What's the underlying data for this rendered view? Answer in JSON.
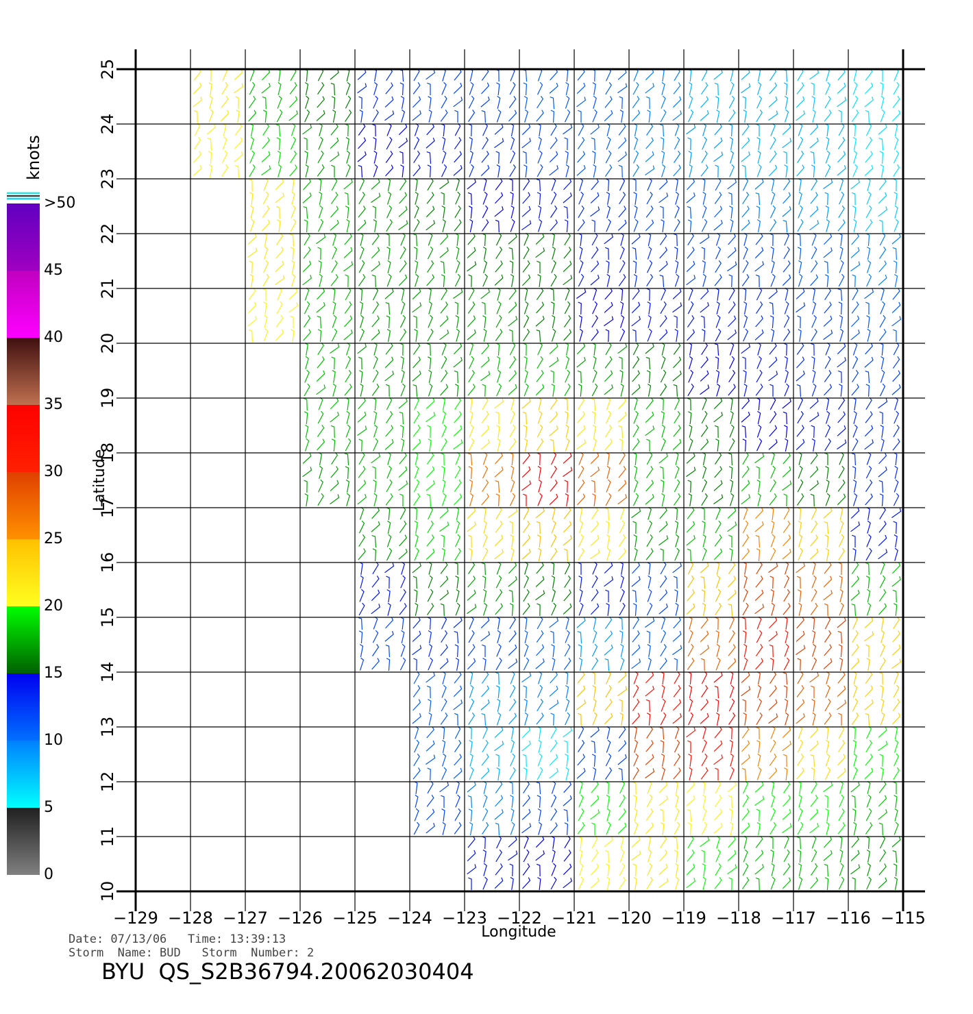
{
  "chart_data": {
    "type": "wind-barbs",
    "xlabel": "Longitude",
    "ylabel": "Latitude",
    "xlim": [
      -129,
      -115
    ],
    "ylim": [
      10,
      25
    ],
    "xticks": [
      {
        "value": -129,
        "label": "−129"
      },
      {
        "value": -128,
        "label": "−128"
      },
      {
        "value": -127,
        "label": "−127"
      },
      {
        "value": -126,
        "label": "−126"
      },
      {
        "value": -125,
        "label": "−125"
      },
      {
        "value": -124,
        "label": "−124"
      },
      {
        "value": -123,
        "label": "−123"
      },
      {
        "value": -122,
        "label": "−122"
      },
      {
        "value": -121,
        "label": "−121"
      },
      {
        "value": -120,
        "label": "−120"
      },
      {
        "value": -119,
        "label": "−119"
      },
      {
        "value": -118,
        "label": "−118"
      },
      {
        "value": -117,
        "label": "−117"
      },
      {
        "value": -116,
        "label": "−116"
      },
      {
        "value": -115,
        "label": "−115"
      }
    ],
    "yticks": [
      10,
      11,
      12,
      13,
      14,
      15,
      16,
      17,
      18,
      19,
      20,
      21,
      22,
      23,
      24,
      25
    ],
    "grid": true,
    "cell_lon": [
      -129,
      -128,
      -127,
      -126,
      -125,
      -124,
      -123,
      -122,
      -121,
      -120,
      -119,
      -118,
      -117,
      -116
    ],
    "cell_lat": [
      24,
      23,
      22,
      21,
      20,
      19,
      18,
      17,
      16,
      15,
      14,
      13,
      12,
      11,
      10
    ],
    "speed": [
      [
        null,
        22,
        18,
        16,
        13,
        12,
        12,
        11,
        11,
        10,
        8,
        8,
        7,
        6
      ],
      [
        null,
        21,
        19,
        17,
        15,
        14,
        13,
        12,
        11,
        10,
        9,
        8,
        8,
        6
      ],
      [
        null,
        null,
        22,
        18,
        17,
        16,
        15,
        14,
        13,
        12,
        11,
        10,
        9,
        7
      ],
      [
        null,
        null,
        22,
        18,
        17,
        17,
        16,
        16,
        14,
        13,
        12,
        12,
        11,
        10
      ],
      [
        null,
        null,
        21,
        18,
        17,
        17,
        17,
        16,
        15,
        14,
        14,
        13,
        12,
        11
      ],
      [
        null,
        null,
        null,
        18,
        17,
        17,
        18,
        18,
        17,
        16,
        15,
        14,
        13,
        12
      ],
      [
        null,
        null,
        null,
        18,
        18,
        20,
        22,
        24,
        22,
        18,
        16,
        15,
        14,
        13
      ],
      [
        null,
        null,
        null,
        17,
        18,
        20,
        27,
        35,
        28,
        18,
        16,
        18,
        16,
        13
      ],
      [
        null,
        null,
        null,
        null,
        17,
        19,
        23,
        25,
        22,
        17,
        18,
        26,
        24,
        14
      ],
      [
        null,
        null,
        null,
        null,
        14,
        16,
        17,
        16,
        14,
        12,
        25,
        30,
        28,
        18
      ],
      [
        null,
        null,
        null,
        null,
        12,
        13,
        12,
        11,
        9,
        11,
        28,
        32,
        30,
        24
      ],
      [
        null,
        null,
        null,
        null,
        null,
        11,
        9,
        10,
        25,
        33,
        35,
        30,
        28,
        24
      ],
      [
        null,
        null,
        null,
        null,
        null,
        11,
        8,
        6,
        12,
        30,
        32,
        26,
        23,
        20
      ],
      [
        null,
        null,
        null,
        null,
        null,
        12,
        10,
        12,
        20,
        22,
        21,
        20,
        20,
        18
      ],
      [
        null,
        null,
        null,
        null,
        null,
        null,
        14,
        15,
        21,
        22,
        20,
        18,
        18,
        17
      ]
    ],
    "colorbar": {
      "label": "knots",
      "lim": [
        0,
        50
      ],
      "ticks": [
        0,
        5,
        10,
        15,
        20,
        25,
        30,
        35,
        40,
        45,
        {
          "value": 50,
          "label": ">50"
        }
      ],
      "segments": [
        {
          "from": 0,
          "to": 5,
          "colors": [
            "#808080",
            "#202020"
          ]
        },
        {
          "from": 5,
          "to": 10,
          "colors": [
            "#00ffff",
            "#0080ff"
          ]
        },
        {
          "from": 10,
          "to": 15,
          "colors": [
            "#0070ff",
            "#0000f0"
          ]
        },
        {
          "from": 15,
          "to": 20,
          "colors": [
            "#006000",
            "#00ff00"
          ]
        },
        {
          "from": 20,
          "to": 25,
          "colors": [
            "#ffff20",
            "#ffc000"
          ]
        },
        {
          "from": 25,
          "to": 30,
          "colors": [
            "#ff9000",
            "#e04000"
          ]
        },
        {
          "from": 30,
          "to": 35,
          "colors": [
            "#ff2000",
            "#ff0000"
          ]
        },
        {
          "from": 35,
          "to": 40,
          "colors": [
            "#c07050",
            "#401010"
          ]
        },
        {
          "from": 40,
          "to": 45,
          "colors": [
            "#ff00ff",
            "#c000c0"
          ]
        },
        {
          "from": 45,
          "to": 50,
          "colors": [
            "#a000c0",
            "#6000c0"
          ]
        }
      ]
    },
    "info_line1": "Date: 07/13/06   Time: 13:39:13",
    "info_line2": "Storm  Name: BUD   Storm  Number: 2",
    "title": "BYU  QS_S2B36794.20062030404"
  }
}
